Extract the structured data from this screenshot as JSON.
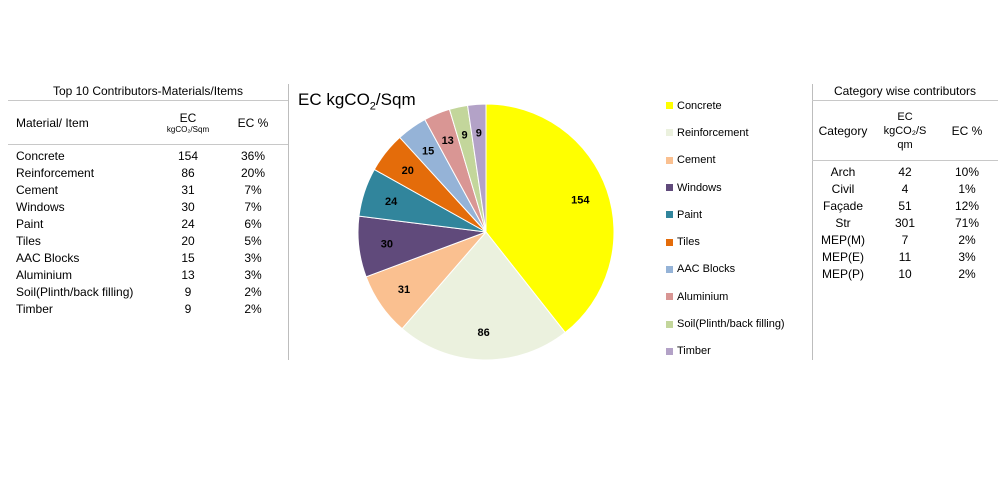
{
  "left_table": {
    "title": "Top 10 Contributors-Materials/Items",
    "headers": {
      "material": "Material/  Item",
      "ec": "EC",
      "ec_unit": "kgCO₂/Sqm",
      "ec_pct": "EC %"
    },
    "rows": [
      {
        "material": "Concrete",
        "ec": "154",
        "pct": "36%"
      },
      {
        "material": "Reinforcement",
        "ec": "86",
        "pct": "20%"
      },
      {
        "material": "Cement",
        "ec": "31",
        "pct": "7%"
      },
      {
        "material": "Windows",
        "ec": "30",
        "pct": "7%"
      },
      {
        "material": "Paint",
        "ec": "24",
        "pct": "6%"
      },
      {
        "material": "Tiles",
        "ec": "20",
        "pct": "5%"
      },
      {
        "material": "AAC Blocks",
        "ec": "15",
        "pct": "3%"
      },
      {
        "material": "Aluminium",
        "ec": "13",
        "pct": "3%"
      },
      {
        "material": "Soil(Plinth/back filling)",
        "ec": "9",
        "pct": "2%"
      },
      {
        "material": "Timber",
        "ec": "9",
        "pct": "2%"
      }
    ]
  },
  "right_table": {
    "title": "Category wise contributors",
    "headers": {
      "category": "Category",
      "ec_line1": "EC",
      "ec_line2": "kgCO₂/S",
      "ec_line3": "qm",
      "ec_pct": "EC %"
    },
    "rows": [
      {
        "category": "Arch",
        "ec": "42",
        "pct": "10%"
      },
      {
        "category": "Civil",
        "ec": "4",
        "pct": "1%"
      },
      {
        "category": "Façade",
        "ec": "51",
        "pct": "12%"
      },
      {
        "category": "Str",
        "ec": "301",
        "pct": "71%"
      },
      {
        "category": "MEP(M)",
        "ec": "7",
        "pct": "2%"
      },
      {
        "category": "MEP(E)",
        "ec": "11",
        "pct": "3%"
      },
      {
        "category": "MEP(P)",
        "ec": "10",
        "pct": "2%"
      }
    ]
  },
  "chart_data": {
    "type": "pie",
    "title": "EC kgCO₂/Sqm",
    "categories": [
      "Concrete",
      "Reinforcement",
      "Cement",
      "Windows",
      "Paint",
      "Tiles",
      "AAC Blocks",
      "Aluminium",
      "Soil(Plinth/back filling)",
      "Timber"
    ],
    "values": [
      154,
      86,
      31,
      30,
      24,
      20,
      15,
      13,
      9,
      9
    ],
    "colors": [
      "#ffff00",
      "#ebf1de",
      "#fac090",
      "#604a7b",
      "#31859c",
      "#e46c0a",
      "#95b3d7",
      "#d99694",
      "#c3d69b",
      "#b3a2c7"
    ],
    "legend_position": "right",
    "start_angle": "12 o'clock, clockwise"
  }
}
